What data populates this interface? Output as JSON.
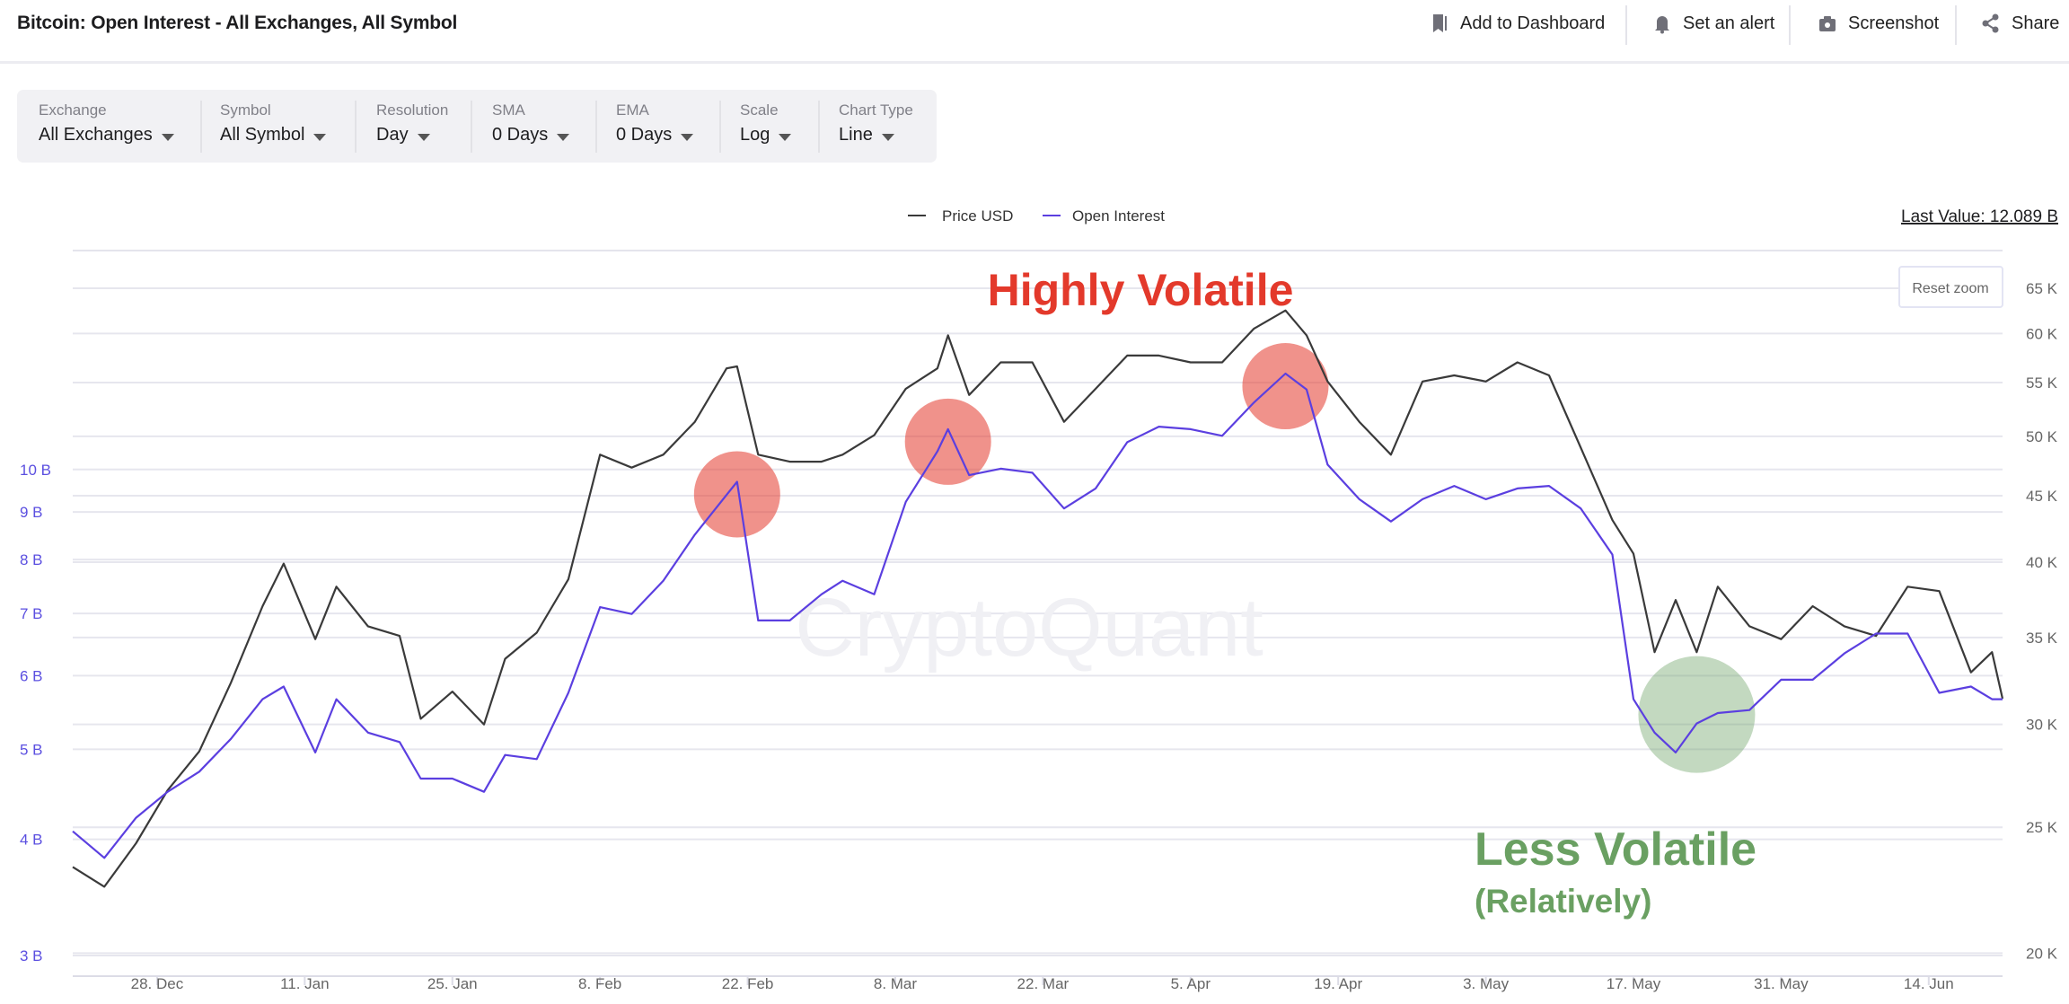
{
  "header": {
    "title": "Bitcoin: Open Interest - All Exchanges, All Symbol",
    "actions": [
      {
        "label": "Add to Dashboard",
        "icon": "bookmark-icon"
      },
      {
        "label": "Set an alert",
        "icon": "bell-icon"
      },
      {
        "label": "Screenshot",
        "icon": "camera-icon"
      },
      {
        "label": "Share",
        "icon": "share-icon"
      }
    ]
  },
  "toolbar": [
    {
      "label": "Exchange",
      "value": "All Exchanges"
    },
    {
      "label": "Symbol",
      "value": "All Symbol"
    },
    {
      "label": "Resolution",
      "value": "Day"
    },
    {
      "label": "SMA",
      "value": "0 Days"
    },
    {
      "label": "EMA",
      "value": "0 Days"
    },
    {
      "label": "Scale",
      "value": "Log"
    },
    {
      "label": "Chart Type",
      "value": "Line"
    }
  ],
  "chart": {
    "last_value": "Last Value: 12.089 B",
    "reset_zoom": "Reset zoom",
    "watermark": "CryptoQuant",
    "annotations": {
      "high": "Highly Volatile",
      "low": "Less Volatile",
      "low_sub": "(Relatively)",
      "high_color": "#e3392b",
      "low_color": "#6aa062"
    }
  },
  "chart_data": {
    "type": "line",
    "legend_placement": "top-center",
    "grid": true,
    "x_range": [
      "2020-12-20",
      "2021-06-21"
    ],
    "x_ticks": [
      {
        "date": "2020-12-28",
        "label": "28. Dec"
      },
      {
        "date": "2021-01-11",
        "label": "11. Jan"
      },
      {
        "date": "2021-01-25",
        "label": "25. Jan"
      },
      {
        "date": "2021-02-08",
        "label": "8. Feb"
      },
      {
        "date": "2021-02-22",
        "label": "22. Feb"
      },
      {
        "date": "2021-03-08",
        "label": "8. Mar"
      },
      {
        "date": "2021-03-22",
        "label": "22. Mar"
      },
      {
        "date": "2021-04-05",
        "label": "5. Apr"
      },
      {
        "date": "2021-04-19",
        "label": "19. Apr"
      },
      {
        "date": "2021-05-03",
        "label": "3. May"
      },
      {
        "date": "2021-05-17",
        "label": "17. May"
      },
      {
        "date": "2021-05-31",
        "label": "31. May"
      },
      {
        "date": "2021-06-14",
        "label": "14. Jun"
      }
    ],
    "y_right": {
      "scale": "log",
      "ylim": [
        19200,
        69500
      ],
      "ticks": [
        {
          "value": 20000,
          "label": "20 K"
        },
        {
          "value": 25000,
          "label": "25 K"
        },
        {
          "value": 30000,
          "label": "30 K"
        },
        {
          "value": 35000,
          "label": "35 K"
        },
        {
          "value": 40000,
          "label": "40 K"
        },
        {
          "value": 45000,
          "label": "45 K"
        },
        {
          "value": 50000,
          "label": "50 K"
        },
        {
          "value": 55000,
          "label": "55 K"
        },
        {
          "value": 60000,
          "label": "60 K"
        },
        {
          "value": 65000,
          "label": "65 K"
        }
      ]
    },
    "y_left": {
      "scale": "log",
      "ylim": [
        2.85,
        17.2
      ],
      "color": "#5b4fe0",
      "ticks": [
        {
          "value": 3,
          "label": "3 B"
        },
        {
          "value": 4,
          "label": "4 B"
        },
        {
          "value": 5,
          "label": "5 B"
        },
        {
          "value": 6,
          "label": "6 B"
        },
        {
          "value": 7,
          "label": "7 B"
        },
        {
          "value": 8,
          "label": "8 B"
        },
        {
          "value": 9,
          "label": "9 B"
        },
        {
          "value": 10,
          "label": "10 B"
        }
      ]
    },
    "x": [
      "2020-12-20",
      "2020-12-23",
      "2020-12-26",
      "2020-12-29",
      "2021-01-01",
      "2021-01-04",
      "2021-01-07",
      "2021-01-09",
      "2021-01-12",
      "2021-01-14",
      "2021-01-17",
      "2021-01-20",
      "2021-01-22",
      "2021-01-25",
      "2021-01-28",
      "2021-01-30",
      "2021-02-02",
      "2021-02-05",
      "2021-02-08",
      "2021-02-11",
      "2021-02-14",
      "2021-02-17",
      "2021-02-20",
      "2021-02-21",
      "2021-02-23",
      "2021-02-26",
      "2021-03-01",
      "2021-03-03",
      "2021-03-06",
      "2021-03-09",
      "2021-03-12",
      "2021-03-13",
      "2021-03-15",
      "2021-03-18",
      "2021-03-21",
      "2021-03-24",
      "2021-03-27",
      "2021-03-30",
      "2021-04-02",
      "2021-04-05",
      "2021-04-08",
      "2021-04-11",
      "2021-04-14",
      "2021-04-16",
      "2021-04-18",
      "2021-04-21",
      "2021-04-24",
      "2021-04-27",
      "2021-04-30",
      "2021-05-03",
      "2021-05-06",
      "2021-05-09",
      "2021-05-12",
      "2021-05-15",
      "2021-05-17",
      "2021-05-19",
      "2021-05-21",
      "2021-05-23",
      "2021-05-25",
      "2021-05-28",
      "2021-05-31",
      "2021-06-03",
      "2021-06-06",
      "2021-06-09",
      "2021-06-12",
      "2021-06-15",
      "2021-06-18",
      "2021-06-20",
      "2021-06-21"
    ],
    "series": [
      {
        "name": "Price USD",
        "axis": "right",
        "color": "#3a3a3a",
        "values": [
          23300,
          22500,
          24300,
          26700,
          28600,
          32300,
          37000,
          39900,
          34900,
          38300,
          35700,
          35100,
          30300,
          31800,
          30000,
          33700,
          35300,
          38800,
          48400,
          47300,
          48400,
          51300,
          56400,
          56600,
          48400,
          47800,
          47800,
          48400,
          50100,
          54400,
          56400,
          59800,
          53800,
          57000,
          57000,
          51300,
          54400,
          57700,
          57700,
          57000,
          57000,
          60500,
          62500,
          59800,
          55100,
          51300,
          48400,
          55100,
          55700,
          55100,
          57000,
          55700,
          49000,
          43100,
          40600,
          34100,
          37400,
          34100,
          38300,
          35700,
          34900,
          37000,
          35700,
          35100,
          38300,
          38000,
          32900,
          34100,
          31400
        ]
      },
      {
        "name": "Open Interest",
        "axis": "left",
        "color": "#5b3fe0",
        "values": [
          4.08,
          3.82,
          4.22,
          4.5,
          4.73,
          5.13,
          5.66,
          5.84,
          4.96,
          5.66,
          5.21,
          5.09,
          4.65,
          4.65,
          4.5,
          4.93,
          4.88,
          5.75,
          7.11,
          6.99,
          7.59,
          8.51,
          9.39,
          9.7,
          6.88,
          6.88,
          7.34,
          7.59,
          7.34,
          9.23,
          10.46,
          11.05,
          9.86,
          10.02,
          9.92,
          9.08,
          9.54,
          10.7,
          11.12,
          11.05,
          10.87,
          11.8,
          12.68,
          12.19,
          10.12,
          9.29,
          8.79,
          9.29,
          9.6,
          9.29,
          9.54,
          9.6,
          9.08,
          8.1,
          5.66,
          5.21,
          4.96,
          5.33,
          5.47,
          5.51,
          5.94,
          5.94,
          6.34,
          6.66,
          6.66,
          5.75,
          5.84,
          5.66,
          5.66
        ]
      }
    ],
    "highlights": [
      {
        "date": "2021-02-21",
        "series": "Open Interest",
        "kind": "high"
      },
      {
        "date": "2021-03-13",
        "series": "Open Interest",
        "kind": "high"
      },
      {
        "date": "2021-04-14",
        "series": "Open Interest",
        "kind": "high"
      },
      {
        "date": "2021-05-23",
        "series": "Open Interest",
        "kind": "low"
      }
    ]
  }
}
